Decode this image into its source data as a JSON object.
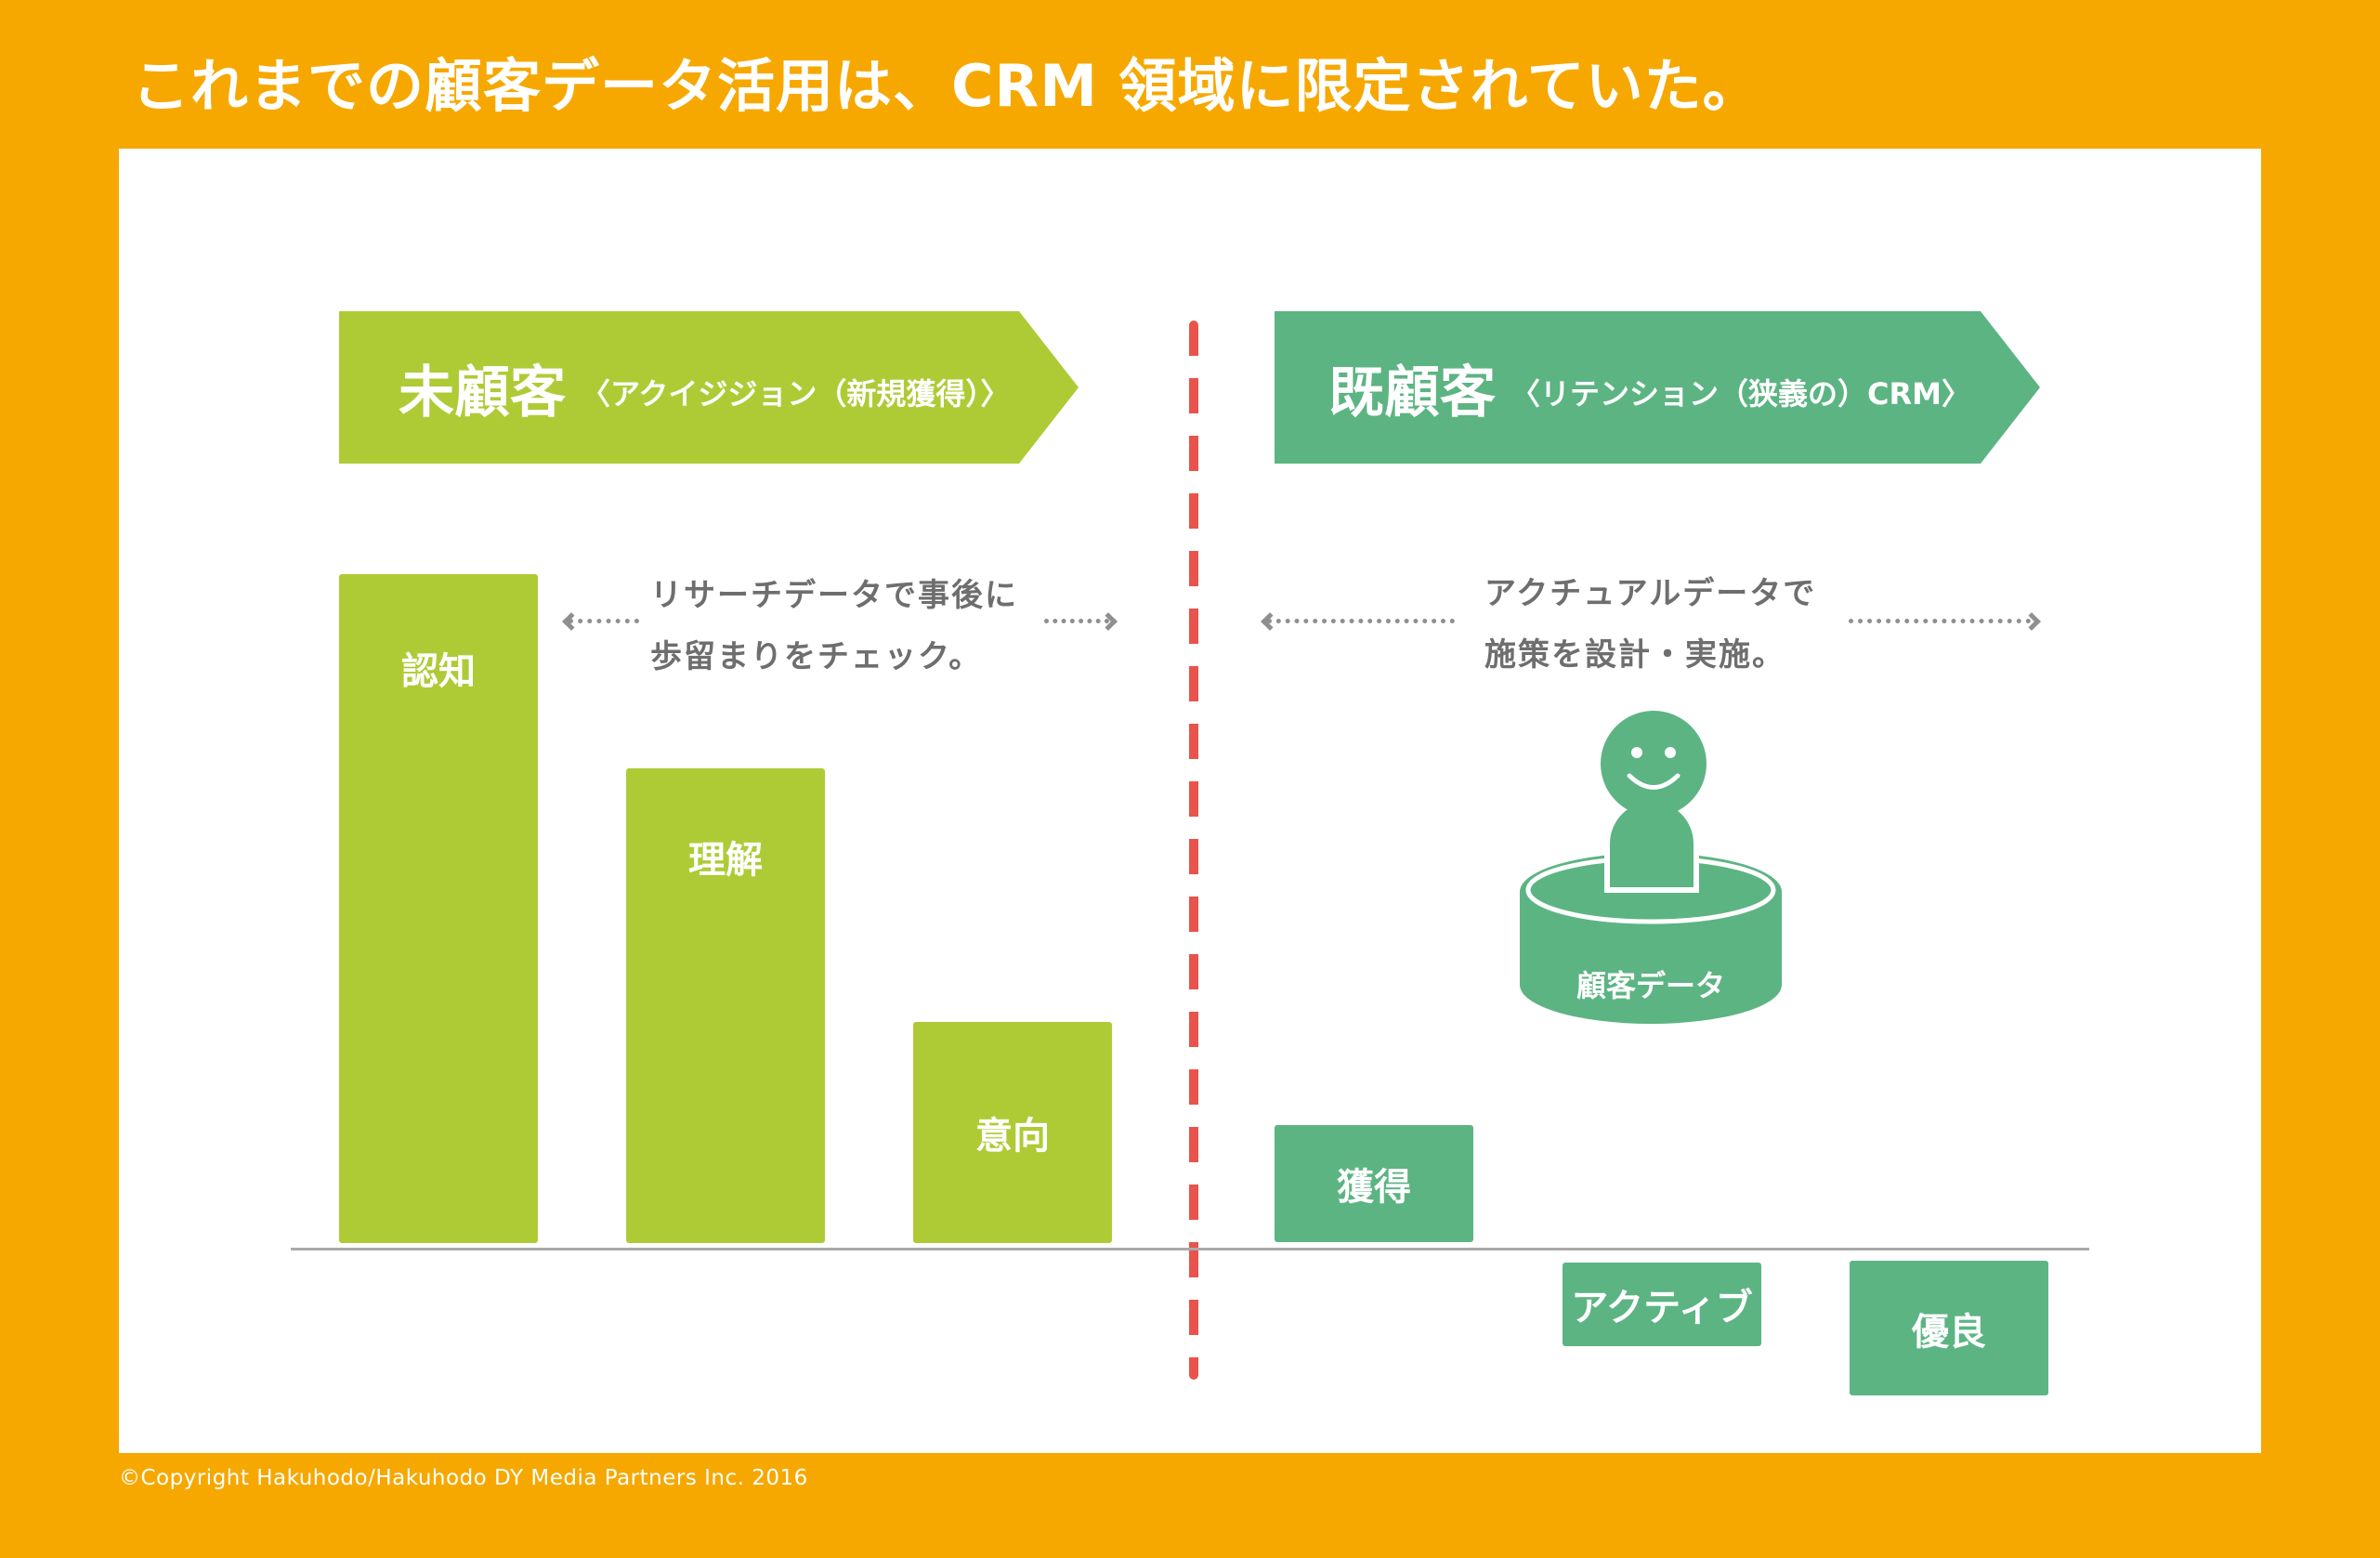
{
  "header": {
    "title": "これまでの顧客データ活用は、CRM 領域に限定されていた。"
  },
  "left": {
    "banner_main": "未顧客",
    "banner_sub": "〈アクイジジョン（新規獲得）〉",
    "note_line1": "リサーチデータで事後に",
    "note_line2": "歩留まりをチェック。",
    "bars": [
      {
        "label": "認知",
        "level": 1.0
      },
      {
        "label": "理解",
        "level": 0.71
      },
      {
        "label": "意向",
        "level": 0.33
      }
    ]
  },
  "right": {
    "banner_main": "既顧客",
    "banner_sub": "〈リテンション（狭義の）CRM〉",
    "note_line1": "アクチュアルデータで",
    "note_line2": "施策を設計・実施。",
    "database_label": "顧客データ",
    "boxes": [
      {
        "label": "獲得"
      },
      {
        "label": "アクティブ"
      },
      {
        "label": "優良"
      }
    ]
  },
  "colors": {
    "background": "#F6A800",
    "left_green": "#AECB36",
    "right_green": "#5CB483",
    "divider_red": "#E8544B",
    "note_gray": "#6e6e6e"
  },
  "footer": {
    "copyright": "©Copyright Hakuhodo/Hakuhodo DY Media Partners Inc. 2016"
  }
}
